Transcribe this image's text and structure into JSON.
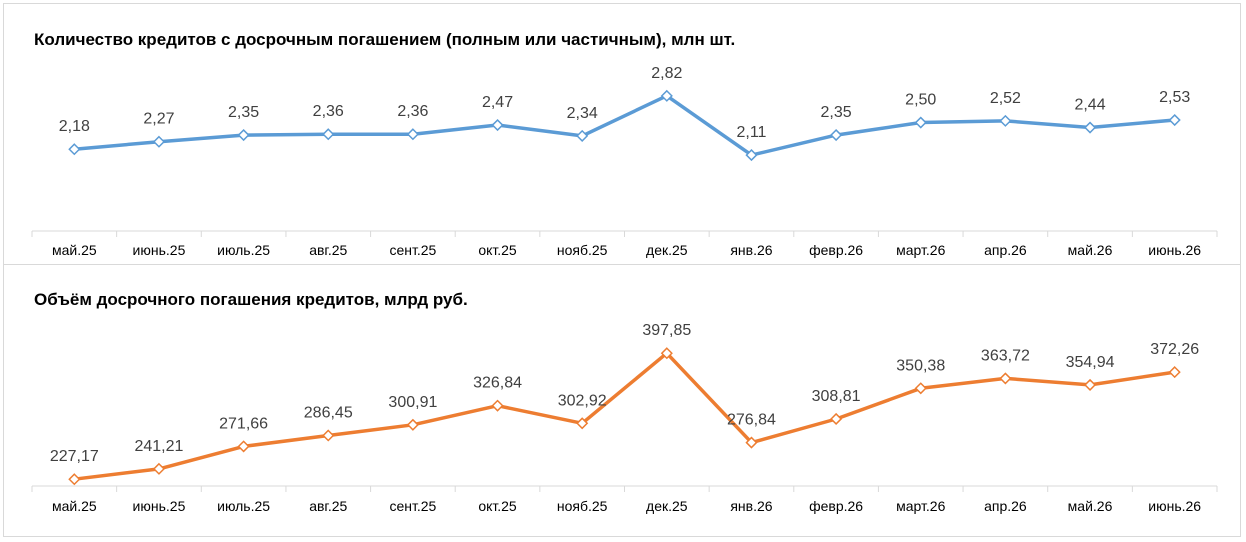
{
  "chart_data": [
    {
      "type": "line",
      "title": "Количество кредитов с досрочным погашением (полным или частичным), млн шт.",
      "categories": [
        "май.25",
        "июнь.25",
        "июль.25",
        "авг.25",
        "сент.25",
        "окт.25",
        "нояб.25",
        "дек.25",
        "янв.26",
        "февр.26",
        "март.26",
        "апр.26",
        "май.26",
        "июнь.26"
      ],
      "values": [
        2.18,
        2.27,
        2.35,
        2.36,
        2.36,
        2.47,
        2.34,
        2.82,
        2.11,
        2.35,
        2.5,
        2.52,
        2.44,
        2.53
      ],
      "labels": [
        "2,18",
        "2,27",
        "2,35",
        "2,36",
        "2,36",
        "2,47",
        "2,34",
        "2,82",
        "2,11",
        "2,35",
        "2,50",
        "2,52",
        "2,44",
        "2,53"
      ],
      "xlabel": "",
      "ylabel": "",
      "ylim": [
        1.2,
        2.95
      ],
      "grid": false,
      "legend": "none",
      "color": "#5b9bd5",
      "marker": "diamond-open"
    },
    {
      "type": "line",
      "title": "Объём досрочного погашения кредитов, млрд руб.",
      "categories": [
        "май.25",
        "июнь.25",
        "июль.25",
        "авг.25",
        "сент.25",
        "окт.25",
        "нояб.25",
        "дек.25",
        "янв.26",
        "февр.26",
        "март.26",
        "апр.26",
        "май.26",
        "июнь.26"
      ],
      "values": [
        227.17,
        241.21,
        271.66,
        286.45,
        300.91,
        326.84,
        302.92,
        397.85,
        276.84,
        308.81,
        350.38,
        363.72,
        354.94,
        372.26
      ],
      "labels": [
        "227,17",
        "241,21",
        "271,66",
        "286,45",
        "300,91",
        "326,84",
        "302,92",
        "397,85",
        "276,84",
        "308,81",
        "350,38",
        "363,72",
        "354,94",
        "372,26"
      ],
      "xlabel": "",
      "ylabel": "",
      "ylim": [
        218,
        409
      ],
      "grid": false,
      "legend": "none",
      "color": "#ed7d31",
      "marker": "diamond-open"
    }
  ]
}
